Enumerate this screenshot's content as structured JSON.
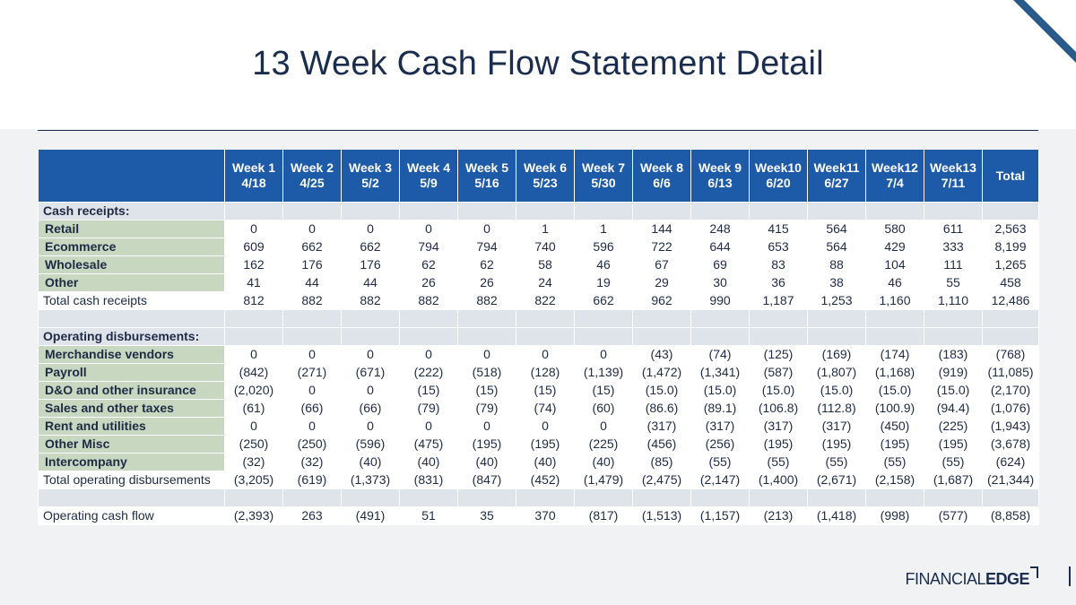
{
  "title": "13 Week Cash Flow Statement Detail",
  "logo": {
    "part1": "FINANCIAL",
    "part2": "EDGE"
  },
  "colors": {
    "header_bg": "#1d5aa8",
    "label_green": "#c7d7c0",
    "title": "#1b2d4f"
  },
  "header": {
    "weeks": [
      {
        "week": "Week 1",
        "date": "4/18"
      },
      {
        "week": "Week 2",
        "date": "4/25"
      },
      {
        "week": "Week 3",
        "date": "5/2"
      },
      {
        "week": "Week 4",
        "date": "5/9"
      },
      {
        "week": "Week 5",
        "date": "5/16"
      },
      {
        "week": "Week 6",
        "date": "5/23"
      },
      {
        "week": "Week 7",
        "date": "5/30"
      },
      {
        "week": "Week 8",
        "date": "6/6"
      },
      {
        "week": "Week 9",
        "date": "6/13"
      },
      {
        "week": "Week10",
        "date": "6/20"
      },
      {
        "week": "Week11",
        "date": "6/27"
      },
      {
        "week": "Week12",
        "date": "7/4"
      },
      {
        "week": "Week13",
        "date": "7/11"
      }
    ],
    "total": "Total"
  },
  "sections": {
    "receipts_title": "Cash receipts:",
    "disbursements_title": "Operating disbursements:"
  },
  "receipts": [
    {
      "label": "Retail",
      "values": [
        "0",
        "0",
        "0",
        "0",
        "0",
        "1",
        "1",
        "144",
        "248",
        "415",
        "564",
        "580",
        "611",
        "2,563"
      ]
    },
    {
      "label": "Ecommerce",
      "values": [
        "609",
        "662",
        "662",
        "794",
        "794",
        "740",
        "596",
        "722",
        "644",
        "653",
        "564",
        "429",
        "333",
        "8,199"
      ]
    },
    {
      "label": "Wholesale",
      "values": [
        "162",
        "176",
        "176",
        "62",
        "62",
        "58",
        "46",
        "67",
        "69",
        "83",
        "88",
        "104",
        "111",
        "1,265"
      ]
    },
    {
      "label": "Other",
      "values": [
        "41",
        "44",
        "44",
        "26",
        "26",
        "24",
        "19",
        "29",
        "30",
        "36",
        "38",
        "46",
        "55",
        "458"
      ]
    }
  ],
  "total_receipts": {
    "label": "Total cash receipts",
    "values": [
      "812",
      "882",
      "882",
      "882",
      "882",
      "822",
      "662",
      "962",
      "990",
      "1,187",
      "1,253",
      "1,160",
      "1,110",
      "12,486"
    ]
  },
  "disbursements": [
    {
      "label": "Merchandise vendors",
      "values": [
        "0",
        "0",
        "0",
        "0",
        "0",
        "0",
        "0",
        "(43)",
        "(74)",
        "(125)",
        "(169)",
        "(174)",
        "(183)",
        "(768)"
      ]
    },
    {
      "label": "Payroll",
      "values": [
        "(842)",
        "(271)",
        "(671)",
        "(222)",
        "(518)",
        "(128)",
        "(1,139)",
        "(1,472)",
        "(1,341)",
        "(587)",
        "(1,807)",
        "(1,168)",
        "(919)",
        "(11,085)"
      ]
    },
    {
      "label": "D&O and other insurance",
      "values": [
        "(2,020)",
        "0",
        "0",
        "(15)",
        "(15)",
        "(15)",
        "(15)",
        "(15.0)",
        "(15.0)",
        "(15.0)",
        "(15.0)",
        "(15.0)",
        "(15.0)",
        "(2,170)"
      ]
    },
    {
      "label": "Sales and other taxes",
      "values": [
        "(61)",
        "(66)",
        "(66)",
        "(79)",
        "(79)",
        "(74)",
        "(60)",
        "(86.6)",
        "(89.1)",
        "(106.8)",
        "(112.8)",
        "(100.9)",
        "(94.4)",
        "(1,076)"
      ]
    },
    {
      "label": "Rent and utilities",
      "values": [
        "0",
        "0",
        "0",
        "0",
        "0",
        "0",
        "0",
        "(317)",
        "(317)",
        "(317)",
        "(317)",
        "(450)",
        "(225)",
        "(1,943)"
      ]
    },
    {
      "label": "Other Misc",
      "values": [
        "(250)",
        "(250)",
        "(596)",
        "(475)",
        "(195)",
        "(195)",
        "(225)",
        "(456)",
        "(256)",
        "(195)",
        "(195)",
        "(195)",
        "(195)",
        "(3,678)"
      ]
    },
    {
      "label": "Intercompany",
      "values": [
        "(32)",
        "(32)",
        "(40)",
        "(40)",
        "(40)",
        "(40)",
        "(40)",
        "(85)",
        "(55)",
        "(55)",
        "(55)",
        "(55)",
        "(55)",
        "(624)"
      ]
    }
  ],
  "total_disbursements": {
    "label": "Total operating disbursements",
    "values": [
      "(3,205)",
      "(619)",
      "(1,373)",
      "(831)",
      "(847)",
      "(452)",
      "(1,479)",
      "(2,475)",
      "(2,147)",
      "(1,400)",
      "(2,671)",
      "(2,158)",
      "(1,687)",
      "(21,344)"
    ]
  },
  "operating_cash_flow": {
    "label": "Operating cash flow",
    "values": [
      "(2,393)",
      "263",
      "(491)",
      "51",
      "35",
      "370",
      "(817)",
      "(1,513)",
      "(1,157)",
      "(213)",
      "(1,418)",
      "(998)",
      "(577)",
      "(8,858)"
    ]
  }
}
